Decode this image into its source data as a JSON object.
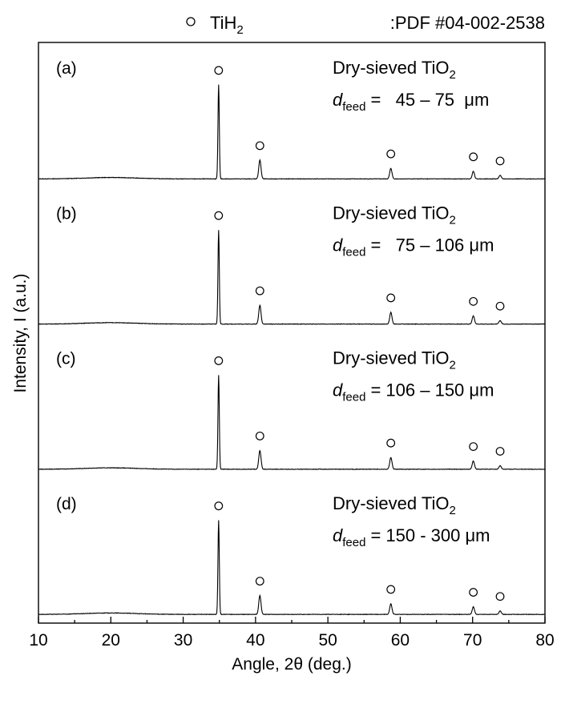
{
  "chart_data": {
    "type": "line",
    "xlabel": "Angle, 2θ (deg.)",
    "ylabel": "Intensity, I (a.u.)",
    "xlim": [
      10,
      80
    ],
    "x_ticks": [
      "10",
      "20",
      "30",
      "40",
      "50",
      "60",
      "70",
      "80"
    ],
    "legend": {
      "marker": "open-circle",
      "label": "TiH",
      "label_sub": "2",
      "pdf_ref": ":PDF #04-002-2538",
      "placement": "top"
    },
    "panels": [
      {
        "tag": "(a)",
        "title": "Dry-sieved TiO",
        "title_sub": "2",
        "dlabel": "d",
        "dlabel_sub": "feed",
        "range_text": "=   45 – 75  μm",
        "peaks": [
          {
            "x": 34.9,
            "h": 0.8
          },
          {
            "x": 40.6,
            "h": 0.16
          },
          {
            "x": 58.7,
            "h": 0.09
          },
          {
            "x": 70.1,
            "h": 0.065
          },
          {
            "x": 73.8,
            "h": 0.03
          }
        ]
      },
      {
        "tag": "(b)",
        "title": "Dry-sieved TiO",
        "title_sub": "2",
        "dlabel": "d",
        "dlabel_sub": "feed",
        "range_text": "=   75 – 106 μm",
        "peaks": [
          {
            "x": 34.9,
            "h": 0.8
          },
          {
            "x": 40.6,
            "h": 0.16
          },
          {
            "x": 58.7,
            "h": 0.1
          },
          {
            "x": 70.1,
            "h": 0.07
          },
          {
            "x": 73.8,
            "h": 0.03
          }
        ]
      },
      {
        "tag": "(c)",
        "title": "Dry-sieved TiO",
        "title_sub": "2",
        "dlabel": "d",
        "dlabel_sub": "feed",
        "range_text": "= 106 – 150 μm",
        "peaks": [
          {
            "x": 34.9,
            "h": 0.8
          },
          {
            "x": 40.6,
            "h": 0.16
          },
          {
            "x": 58.7,
            "h": 0.1
          },
          {
            "x": 70.1,
            "h": 0.07
          },
          {
            "x": 73.8,
            "h": 0.03
          }
        ]
      },
      {
        "tag": "(d)",
        "title": "Dry-sieved TiO",
        "title_sub": "2",
        "dlabel": "d",
        "dlabel_sub": "feed",
        "range_text": "= 150 - 300 μm",
        "peaks": [
          {
            "x": 34.9,
            "h": 0.8
          },
          {
            "x": 40.6,
            "h": 0.16
          },
          {
            "x": 58.7,
            "h": 0.09
          },
          {
            "x": 70.1,
            "h": 0.065
          },
          {
            "x": 73.8,
            "h": 0.03
          }
        ]
      }
    ]
  }
}
